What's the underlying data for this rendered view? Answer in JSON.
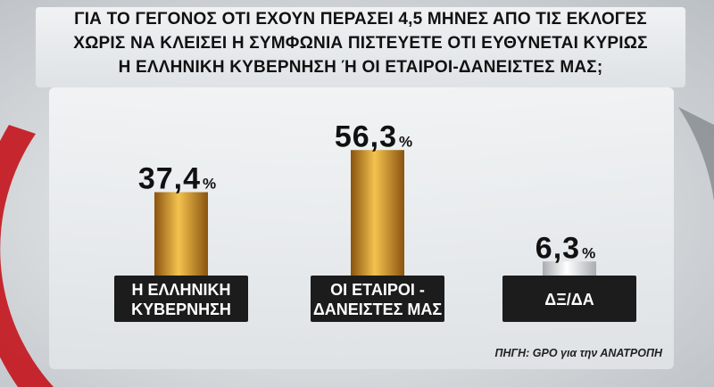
{
  "title": {
    "lines": [
      "ΓΙΑ ΤΟ ΓΕΓΟΝΟΣ ΟΤΙ ΕΧΟΥΝ ΠΕΡΑΣΕΙ 4,5 ΜΗΝΕΣ ΑΠΟ ΤΙΣ ΕΚΛΟΓΕΣ",
      "ΧΩΡΙΣ ΝΑ ΚΛΕΙΣΕΙ Η ΣΥΜΦΩΝΙΑ ΠΙΣΤΕΥΕΤΕ ΟΤΙ ΕΥΘΥΝΕΤΑΙ ΚΥΡΙΩΣ",
      "Η ΕΛΛΗΝΙΚΗ ΚΥΒΕΡΝΗΣΗ Ή ΟΙ ΕΤΑΙΡΟΙ-ΔΑΝΕΙΣΤΕΣ ΜΑΣ;"
    ]
  },
  "chart_data": {
    "type": "bar",
    "categories": [
      [
        "Η ΕΛΛΗΝΙΚΗ",
        "ΚΥΒΕΡΝΗΣΗ"
      ],
      [
        "ΟΙ ΕΤΑΙΡΟΙ -",
        "ΔΑΝΕΙΣΤΕΣ ΜΑΣ"
      ],
      [
        "ΔΞ/ΔΑ"
      ]
    ],
    "values": [
      37.4,
      56.3,
      6.3
    ],
    "value_labels": [
      "37,4",
      "56,3",
      "6,3"
    ],
    "unit": "%",
    "ylim": [
      0,
      60
    ],
    "grid": false,
    "colors": {
      "bar_main": "#d98f1e",
      "bar_light": "#f4c24e",
      "bar_dark": "#8a5410",
      "bar_other_light": "#ffffff",
      "bar_other_dark": "#a8adb2",
      "label_box": "#1c1c1c",
      "label_text": "#ffffff"
    }
  },
  "source": "ΠΗΓΗ: GPO για την ΑΝΑΤΡΟΠΗ"
}
